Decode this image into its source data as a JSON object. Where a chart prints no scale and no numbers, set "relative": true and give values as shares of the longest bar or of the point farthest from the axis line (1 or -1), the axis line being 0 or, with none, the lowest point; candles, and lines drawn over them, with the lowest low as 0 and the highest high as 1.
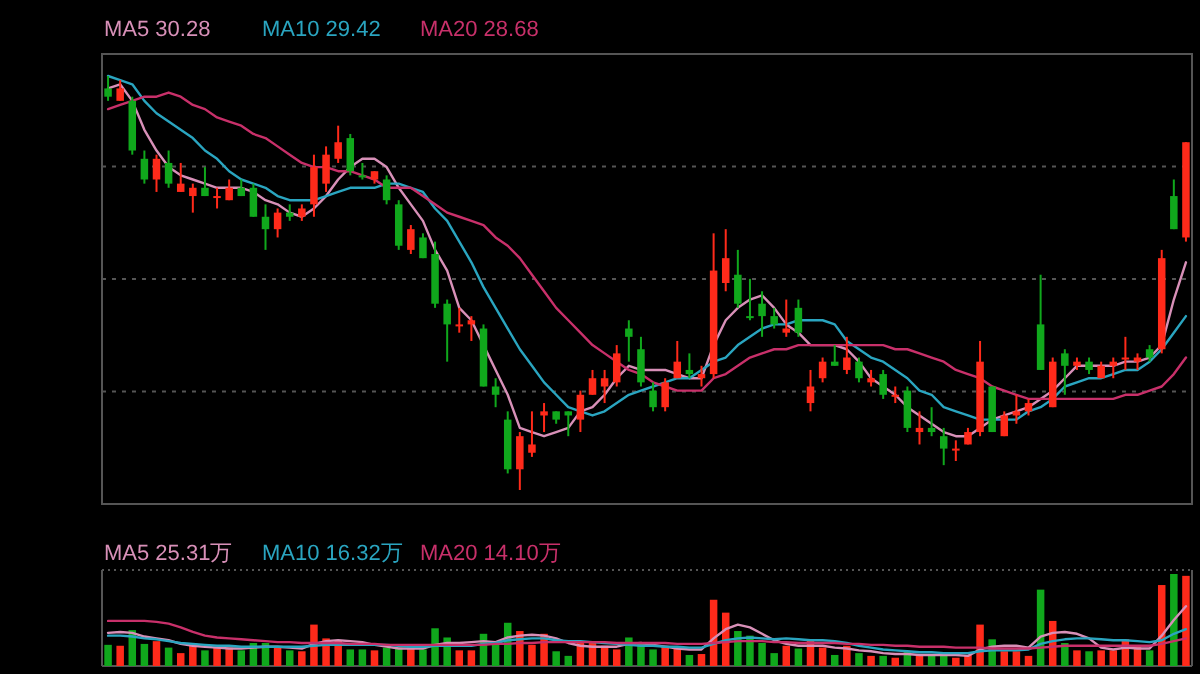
{
  "chart_data": [
    {
      "type": "candlestick",
      "relative": true,
      "grid": "y",
      "legend": "top left",
      "categories": [
        null,
        null,
        null,
        null,
        null,
        null,
        null,
        null,
        null,
        null,
        null,
        null,
        null,
        null,
        null,
        null,
        null,
        null,
        null,
        null,
        null,
        null,
        null,
        null,
        null,
        null,
        null,
        null,
        null,
        null,
        null,
        null,
        null,
        null,
        null,
        null,
        null,
        null,
        null,
        null,
        null,
        null,
        null,
        null,
        null,
        null,
        null,
        null,
        null,
        null,
        null,
        null,
        null,
        null,
        null,
        null,
        null,
        null,
        null,
        null,
        null,
        null,
        null,
        null,
        null,
        null,
        null,
        null,
        null,
        null,
        null,
        null,
        null,
        null,
        null,
        null,
        null,
        null,
        null,
        null,
        null,
        null,
        null,
        null,
        null,
        null,
        null,
        null,
        null,
        null
      ],
      "ohlc": [
        [
          0.97,
          1.0,
          0.94,
          0.95
        ],
        [
          0.94,
          0.99,
          0.94,
          0.97
        ],
        [
          0.94,
          0.95,
          0.81,
          0.82
        ],
        [
          0.8,
          0.82,
          0.74,
          0.75
        ],
        [
          0.75,
          0.81,
          0.72,
          0.8
        ],
        [
          0.79,
          0.82,
          0.73,
          0.74
        ],
        [
          0.72,
          0.79,
          0.72,
          0.74
        ],
        [
          0.71,
          0.74,
          0.67,
          0.73
        ],
        [
          0.73,
          0.78,
          0.71,
          0.71
        ],
        [
          0.71,
          0.73,
          0.68,
          0.71
        ],
        [
          0.7,
          0.75,
          0.7,
          0.73
        ],
        [
          0.73,
          0.75,
          0.71,
          0.71
        ],
        [
          0.73,
          0.74,
          0.66,
          0.66
        ],
        [
          0.66,
          0.69,
          0.58,
          0.63
        ],
        [
          0.63,
          0.68,
          0.61,
          0.67
        ],
        [
          0.67,
          0.69,
          0.65,
          0.66
        ],
        [
          0.66,
          0.69,
          0.65,
          0.68
        ],
        [
          0.69,
          0.81,
          0.66,
          0.78
        ],
        [
          0.74,
          0.83,
          0.72,
          0.81
        ],
        [
          0.8,
          0.88,
          0.79,
          0.84
        ],
        [
          0.85,
          0.86,
          0.76,
          0.77
        ],
        [
          0.76,
          0.79,
          0.75,
          0.76
        ],
        [
          0.75,
          0.77,
          0.74,
          0.77
        ],
        [
          0.75,
          0.76,
          0.69,
          0.7
        ],
        [
          0.69,
          0.7,
          0.58,
          0.59
        ],
        [
          0.58,
          0.64,
          0.57,
          0.63
        ],
        [
          0.61,
          0.62,
          0.56,
          0.56
        ],
        [
          0.57,
          0.6,
          0.44,
          0.45
        ],
        [
          0.45,
          0.46,
          0.31,
          0.4
        ],
        [
          0.4,
          0.44,
          0.38,
          0.4
        ],
        [
          0.4,
          0.42,
          0.36,
          0.41
        ],
        [
          0.39,
          0.4,
          0.25,
          0.25
        ],
        [
          0.25,
          0.27,
          0.2,
          0.23
        ],
        [
          0.17,
          0.19,
          0.04,
          0.05
        ],
        [
          0.05,
          0.14,
          0.0,
          0.13
        ],
        [
          0.09,
          0.19,
          0.08,
          0.11
        ],
        [
          0.18,
          0.21,
          0.14,
          0.19
        ],
        [
          0.19,
          0.19,
          0.16,
          0.17
        ],
        [
          0.19,
          0.19,
          0.13,
          0.18
        ],
        [
          0.17,
          0.24,
          0.14,
          0.23
        ],
        [
          0.23,
          0.29,
          0.23,
          0.27
        ],
        [
          0.25,
          0.29,
          0.21,
          0.27
        ],
        [
          0.26,
          0.35,
          0.25,
          0.33
        ],
        [
          0.39,
          0.41,
          0.31,
          0.37
        ],
        [
          0.34,
          0.37,
          0.25,
          0.26
        ],
        [
          0.24,
          0.26,
          0.19,
          0.2
        ],
        [
          0.2,
          0.27,
          0.19,
          0.26
        ],
        [
          0.27,
          0.36,
          0.27,
          0.31
        ],
        [
          0.29,
          0.33,
          0.27,
          0.28
        ],
        [
          0.27,
          0.3,
          0.25,
          0.28
        ],
        [
          0.28,
          0.62,
          0.27,
          0.53
        ],
        [
          0.5,
          0.63,
          0.48,
          0.56
        ],
        [
          0.52,
          0.58,
          0.44,
          0.45
        ],
        [
          0.42,
          0.51,
          0.41,
          0.42
        ],
        [
          0.45,
          0.48,
          0.37,
          0.42
        ],
        [
          0.42,
          0.44,
          0.39,
          0.4
        ],
        [
          0.38,
          0.46,
          0.37,
          0.39
        ],
        [
          0.44,
          0.46,
          0.37,
          0.38
        ],
        [
          0.21,
          0.29,
          0.19,
          0.25
        ],
        [
          0.27,
          0.32,
          0.26,
          0.31
        ],
        [
          0.31,
          0.35,
          0.3,
          0.3
        ],
        [
          0.29,
          0.37,
          0.28,
          0.32
        ],
        [
          0.31,
          0.32,
          0.26,
          0.27
        ],
        [
          0.26,
          0.29,
          0.25,
          0.27
        ],
        [
          0.28,
          0.29,
          0.22,
          0.23
        ],
        [
          0.23,
          0.25,
          0.21,
          0.23
        ],
        [
          0.24,
          0.25,
          0.14,
          0.15
        ],
        [
          0.14,
          0.19,
          0.11,
          0.15
        ],
        [
          0.15,
          0.2,
          0.13,
          0.14
        ],
        [
          0.13,
          0.15,
          0.06,
          0.1
        ],
        [
          0.1,
          0.12,
          0.07,
          0.1
        ],
        [
          0.11,
          0.15,
          0.11,
          0.14
        ],
        [
          0.14,
          0.36,
          0.13,
          0.31
        ],
        [
          0.25,
          0.25,
          0.14,
          0.14
        ],
        [
          0.13,
          0.19,
          0.13,
          0.18
        ],
        [
          0.18,
          0.23,
          0.16,
          0.19
        ],
        [
          0.19,
          0.22,
          0.18,
          0.21
        ],
        [
          0.4,
          0.52,
          0.29,
          0.29
        ],
        [
          0.2,
          0.32,
          0.2,
          0.31
        ],
        [
          0.33,
          0.34,
          0.23,
          0.3
        ],
        [
          0.3,
          0.32,
          0.29,
          0.31
        ],
        [
          0.31,
          0.32,
          0.28,
          0.29
        ],
        [
          0.27,
          0.31,
          0.27,
          0.3
        ],
        [
          0.3,
          0.32,
          0.27,
          0.31
        ],
        [
          0.32,
          0.37,
          0.29,
          0.32
        ],
        [
          0.31,
          0.33,
          0.29,
          0.32
        ],
        [
          0.34,
          0.35,
          0.31,
          0.32
        ],
        [
          0.34,
          0.58,
          0.33,
          0.56
        ],
        [
          0.71,
          0.75,
          0.63,
          0.63
        ],
        [
          0.61,
          0.84,
          0.6,
          0.84
        ]
      ],
      "colors": [
        "#10a81c",
        "#ff2a1a",
        "#10a81c",
        "#10a81c",
        "#ff2a1a",
        "#10a81c",
        "#ff2a1a",
        "#ff2a1a",
        "#10a81c",
        "#ff2a1a",
        "#ff2a1a",
        "#10a81c",
        "#10a81c",
        "#10a81c",
        "#ff2a1a",
        "#10a81c",
        "#ff2a1a",
        "#ff2a1a",
        "#ff2a1a",
        "#ff2a1a",
        "#10a81c",
        "#10a81c",
        "#ff2a1a",
        "#10a81c",
        "#10a81c",
        "#ff2a1a",
        "#10a81c",
        "#10a81c",
        "#10a81c",
        "#ff2a1a",
        "#ff2a1a",
        "#10a81c",
        "#10a81c",
        "#10a81c",
        "#ff2a1a",
        "#ff2a1a",
        "#ff2a1a",
        "#10a81c",
        "#10a81c",
        "#ff2a1a",
        "#ff2a1a",
        "#ff2a1a",
        "#ff2a1a",
        "#10a81c",
        "#10a81c",
        "#10a81c",
        "#ff2a1a",
        "#ff2a1a",
        "#10a81c",
        "#ff2a1a",
        "#ff2a1a",
        "#ff2a1a",
        "#10a81c",
        "#10a81c",
        "#10a81c",
        "#10a81c",
        "#ff2a1a",
        "#10a81c",
        "#ff2a1a",
        "#ff2a1a",
        "#10a81c",
        "#ff2a1a",
        "#10a81c",
        "#ff2a1a",
        "#10a81c",
        "#ff2a1a",
        "#10a81c",
        "#ff2a1a",
        "#10a81c",
        "#10a81c",
        "#ff2a1a",
        "#ff2a1a",
        "#ff2a1a",
        "#10a81c",
        "#ff2a1a",
        "#ff2a1a",
        "#ff2a1a",
        "#10a81c",
        "#ff2a1a",
        "#10a81c",
        "#ff2a1a",
        "#10a81c",
        "#ff2a1a",
        "#ff2a1a",
        "#ff2a1a",
        "#ff2a1a",
        "#10a81c",
        "#ff2a1a",
        "#10a81c",
        "#ff2a1a"
      ],
      "series": [
        {
          "type": "line",
          "name": "MA5 30.28",
          "color": "#d890b8",
          "values": [
            0.97,
            0.98,
            0.94,
            0.87,
            0.82,
            0.78,
            0.76,
            0.75,
            0.74,
            0.73,
            0.73,
            0.73,
            0.72,
            0.7,
            0.69,
            0.67,
            0.66,
            0.68,
            0.71,
            0.75,
            0.78,
            0.8,
            0.8,
            0.78,
            0.73,
            0.69,
            0.65,
            0.58,
            0.53,
            0.44,
            0.41,
            0.35,
            0.29,
            0.23,
            0.15,
            0.14,
            0.13,
            0.14,
            0.15,
            0.19,
            0.2,
            0.23,
            0.27,
            0.3,
            0.29,
            0.29,
            0.29,
            0.28,
            0.27,
            0.27,
            0.35,
            0.41,
            0.44,
            0.46,
            0.47,
            0.44,
            0.4,
            0.38,
            0.35,
            0.35,
            0.35,
            0.34,
            0.31,
            0.27,
            0.25,
            0.23,
            0.2,
            0.18,
            0.16,
            0.14,
            0.13,
            0.13,
            0.15,
            0.17,
            0.18,
            0.19,
            0.2,
            0.22,
            0.24,
            0.27,
            0.3,
            0.3,
            0.3,
            0.3,
            0.31,
            0.31,
            0.32,
            0.35,
            0.46,
            0.55
          ]
        },
        {
          "type": "line",
          "name": "MA10 29.42",
          "color": "#2aa5c0",
          "values": [
            1.0,
            0.99,
            0.98,
            0.94,
            0.91,
            0.89,
            0.87,
            0.85,
            0.82,
            0.8,
            0.77,
            0.75,
            0.74,
            0.73,
            0.71,
            0.7,
            0.7,
            0.7,
            0.71,
            0.72,
            0.73,
            0.73,
            0.73,
            0.74,
            0.74,
            0.73,
            0.72,
            0.68,
            0.65,
            0.6,
            0.55,
            0.49,
            0.44,
            0.39,
            0.34,
            0.3,
            0.26,
            0.23,
            0.2,
            0.19,
            0.18,
            0.19,
            0.21,
            0.23,
            0.24,
            0.25,
            0.26,
            0.27,
            0.27,
            0.29,
            0.31,
            0.32,
            0.35,
            0.37,
            0.39,
            0.4,
            0.4,
            0.41,
            0.41,
            0.41,
            0.4,
            0.36,
            0.34,
            0.32,
            0.31,
            0.29,
            0.27,
            0.24,
            0.23,
            0.2,
            0.19,
            0.18,
            0.17,
            0.17,
            0.17,
            0.17,
            0.19,
            0.2,
            0.22,
            0.25,
            0.26,
            0.27,
            0.27,
            0.28,
            0.29,
            0.29,
            0.31,
            0.34,
            0.38,
            0.42
          ]
        },
        {
          "type": "line",
          "name": "MA20 28.68",
          "color": "#c8306a",
          "values": [
            0.92,
            0.93,
            0.94,
            0.95,
            0.95,
            0.96,
            0.95,
            0.93,
            0.92,
            0.9,
            0.89,
            0.88,
            0.86,
            0.85,
            0.83,
            0.81,
            0.79,
            0.78,
            0.78,
            0.77,
            0.77,
            0.76,
            0.75,
            0.73,
            0.73,
            0.73,
            0.71,
            0.69,
            0.67,
            0.66,
            0.65,
            0.64,
            0.61,
            0.59,
            0.56,
            0.52,
            0.48,
            0.44,
            0.41,
            0.38,
            0.35,
            0.33,
            0.31,
            0.29,
            0.28,
            0.26,
            0.25,
            0.24,
            0.24,
            0.24,
            0.27,
            0.28,
            0.3,
            0.32,
            0.33,
            0.34,
            0.34,
            0.35,
            0.35,
            0.35,
            0.35,
            0.35,
            0.35,
            0.35,
            0.35,
            0.34,
            0.34,
            0.33,
            0.32,
            0.31,
            0.29,
            0.28,
            0.27,
            0.25,
            0.24,
            0.23,
            0.22,
            0.22,
            0.22,
            0.22,
            0.22,
            0.22,
            0.22,
            0.22,
            0.23,
            0.23,
            0.24,
            0.25,
            0.28,
            0.32
          ]
        }
      ]
    },
    {
      "type": "bar",
      "relative": true,
      "legend": "top left",
      "categories": [
        null,
        null,
        null,
        null,
        null,
        null,
        null,
        null,
        null,
        null,
        null,
        null,
        null,
        null,
        null,
        null,
        null,
        null,
        null,
        null,
        null,
        null,
        null,
        null,
        null,
        null,
        null,
        null,
        null,
        null,
        null,
        null,
        null,
        null,
        null,
        null,
        null,
        null,
        null,
        null,
        null,
        null,
        null,
        null,
        null,
        null,
        null,
        null,
        null,
        null,
        null,
        null,
        null,
        null,
        null,
        null,
        null,
        null,
        null,
        null,
        null,
        null,
        null,
        null,
        null,
        null,
        null,
        null,
        null,
        null,
        null,
        null,
        null,
        null,
        null,
        null,
        null,
        null,
        null,
        null,
        null,
        null,
        null,
        null,
        null,
        null,
        null,
        null,
        null,
        null
      ],
      "series": [
        {
          "type": "bar",
          "colors": [
            "#10a81c",
            "#ff2a1a",
            "#10a81c",
            "#10a81c",
            "#ff2a1a",
            "#10a81c",
            "#ff2a1a",
            "#ff2a1a",
            "#10a81c",
            "#ff2a1a",
            "#ff2a1a",
            "#10a81c",
            "#10a81c",
            "#10a81c",
            "#ff2a1a",
            "#10a81c",
            "#ff2a1a",
            "#ff2a1a",
            "#ff2a1a",
            "#ff2a1a",
            "#10a81c",
            "#10a81c",
            "#ff2a1a",
            "#10a81c",
            "#10a81c",
            "#ff2a1a",
            "#10a81c",
            "#10a81c",
            "#10a81c",
            "#ff2a1a",
            "#ff2a1a",
            "#10a81c",
            "#10a81c",
            "#10a81c",
            "#ff2a1a",
            "#ff2a1a",
            "#ff2a1a",
            "#10a81c",
            "#10a81c",
            "#ff2a1a",
            "#ff2a1a",
            "#ff2a1a",
            "#ff2a1a",
            "#10a81c",
            "#10a81c",
            "#10a81c",
            "#ff2a1a",
            "#ff2a1a",
            "#10a81c",
            "#ff2a1a",
            "#ff2a1a",
            "#ff2a1a",
            "#10a81c",
            "#10a81c",
            "#10a81c",
            "#10a81c",
            "#ff2a1a",
            "#10a81c",
            "#ff2a1a",
            "#ff2a1a",
            "#10a81c",
            "#ff2a1a",
            "#10a81c",
            "#ff2a1a",
            "#10a81c",
            "#ff2a1a",
            "#10a81c",
            "#ff2a1a",
            "#10a81c",
            "#10a81c",
            "#ff2a1a",
            "#ff2a1a",
            "#ff2a1a",
            "#10a81c",
            "#ff2a1a",
            "#ff2a1a",
            "#ff2a1a",
            "#10a81c",
            "#ff2a1a",
            "#10a81c",
            "#ff2a1a",
            "#10a81c",
            "#ff2a1a",
            "#ff2a1a",
            "#ff2a1a",
            "#ff2a1a",
            "#10a81c",
            "#ff2a1a",
            "#10a81c",
            "#ff2a1a"
          ],
          "values": [
            0.23,
            0.22,
            0.39,
            0.24,
            0.27,
            0.2,
            0.14,
            0.22,
            0.17,
            0.2,
            0.2,
            0.17,
            0.25,
            0.25,
            0.2,
            0.17,
            0.16,
            0.45,
            0.3,
            0.28,
            0.18,
            0.18,
            0.17,
            0.2,
            0.2,
            0.2,
            0.18,
            0.41,
            0.31,
            0.17,
            0.17,
            0.35,
            0.25,
            0.47,
            0.38,
            0.23,
            0.35,
            0.16,
            0.11,
            0.25,
            0.25,
            0.22,
            0.18,
            0.31,
            0.24,
            0.18,
            0.22,
            0.2,
            0.12,
            0.13,
            0.72,
            0.58,
            0.38,
            0.33,
            0.25,
            0.14,
            0.22,
            0.19,
            0.29,
            0.2,
            0.12,
            0.22,
            0.14,
            0.11,
            0.11,
            0.09,
            0.16,
            0.12,
            0.12,
            0.11,
            0.09,
            0.12,
            0.45,
            0.29,
            0.16,
            0.16,
            0.11,
            0.83,
            0.49,
            0.25,
            0.17,
            0.16,
            0.17,
            0.17,
            0.29,
            0.22,
            0.17,
            0.88,
            1.0,
            0.98
          ]
        },
        {
          "type": "line",
          "name": "MA5 25.31万",
          "color": "#d890b8",
          "values": [
            0.36,
            0.37,
            0.36,
            0.32,
            0.3,
            0.28,
            0.24,
            0.22,
            0.21,
            0.2,
            0.19,
            0.19,
            0.2,
            0.21,
            0.21,
            0.2,
            0.19,
            0.24,
            0.27,
            0.28,
            0.27,
            0.26,
            0.23,
            0.21,
            0.19,
            0.19,
            0.19,
            0.23,
            0.25,
            0.25,
            0.26,
            0.27,
            0.26,
            0.31,
            0.33,
            0.34,
            0.33,
            0.3,
            0.25,
            0.22,
            0.21,
            0.21,
            0.21,
            0.24,
            0.25,
            0.23,
            0.21,
            0.19,
            0.18,
            0.18,
            0.3,
            0.4,
            0.45,
            0.42,
            0.35,
            0.28,
            0.24,
            0.22,
            0.22,
            0.22,
            0.2,
            0.19,
            0.17,
            0.16,
            0.14,
            0.13,
            0.13,
            0.12,
            0.12,
            0.12,
            0.12,
            0.11,
            0.18,
            0.21,
            0.22,
            0.22,
            0.2,
            0.32,
            0.36,
            0.37,
            0.35,
            0.3,
            0.2,
            0.18,
            0.2,
            0.19,
            0.19,
            0.33,
            0.5,
            0.65
          ]
        },
        {
          "type": "line",
          "name": "MA10 16.32万",
          "color": "#2aa5c0",
          "values": [
            0.33,
            0.33,
            0.32,
            0.3,
            0.29,
            0.27,
            0.25,
            0.24,
            0.23,
            0.22,
            0.22,
            0.21,
            0.21,
            0.21,
            0.21,
            0.21,
            0.21,
            0.22,
            0.23,
            0.23,
            0.23,
            0.23,
            0.23,
            0.23,
            0.22,
            0.21,
            0.21,
            0.22,
            0.22,
            0.22,
            0.22,
            0.24,
            0.25,
            0.28,
            0.29,
            0.3,
            0.3,
            0.28,
            0.27,
            0.27,
            0.26,
            0.25,
            0.24,
            0.23,
            0.22,
            0.22,
            0.21,
            0.21,
            0.2,
            0.2,
            0.24,
            0.28,
            0.3,
            0.31,
            0.3,
            0.29,
            0.3,
            0.29,
            0.28,
            0.28,
            0.27,
            0.25,
            0.22,
            0.2,
            0.18,
            0.17,
            0.16,
            0.15,
            0.15,
            0.14,
            0.14,
            0.14,
            0.16,
            0.17,
            0.17,
            0.17,
            0.18,
            0.24,
            0.27,
            0.29,
            0.3,
            0.3,
            0.29,
            0.28,
            0.28,
            0.27,
            0.26,
            0.28,
            0.35,
            0.4
          ]
        },
        {
          "type": "line",
          "name": "MA20 14.10万",
          "color": "#c8306a",
          "values": [
            0.49,
            0.49,
            0.49,
            0.49,
            0.48,
            0.46,
            0.42,
            0.37,
            0.33,
            0.31,
            0.3,
            0.29,
            0.28,
            0.27,
            0.26,
            0.26,
            0.25,
            0.25,
            0.25,
            0.25,
            0.24,
            0.24,
            0.24,
            0.23,
            0.23,
            0.23,
            0.23,
            0.23,
            0.23,
            0.23,
            0.23,
            0.23,
            0.24,
            0.24,
            0.25,
            0.25,
            0.26,
            0.26,
            0.26,
            0.26,
            0.26,
            0.26,
            0.25,
            0.25,
            0.25,
            0.25,
            0.25,
            0.24,
            0.24,
            0.24,
            0.25,
            0.26,
            0.27,
            0.27,
            0.27,
            0.26,
            0.26,
            0.25,
            0.25,
            0.25,
            0.25,
            0.24,
            0.24,
            0.23,
            0.23,
            0.22,
            0.22,
            0.21,
            0.21,
            0.21,
            0.2,
            0.2,
            0.2,
            0.19,
            0.19,
            0.19,
            0.19,
            0.2,
            0.21,
            0.22,
            0.22,
            0.22,
            0.22,
            0.22,
            0.22,
            0.22,
            0.22,
            0.24,
            0.27,
            0.3
          ]
        }
      ]
    }
  ]
}
